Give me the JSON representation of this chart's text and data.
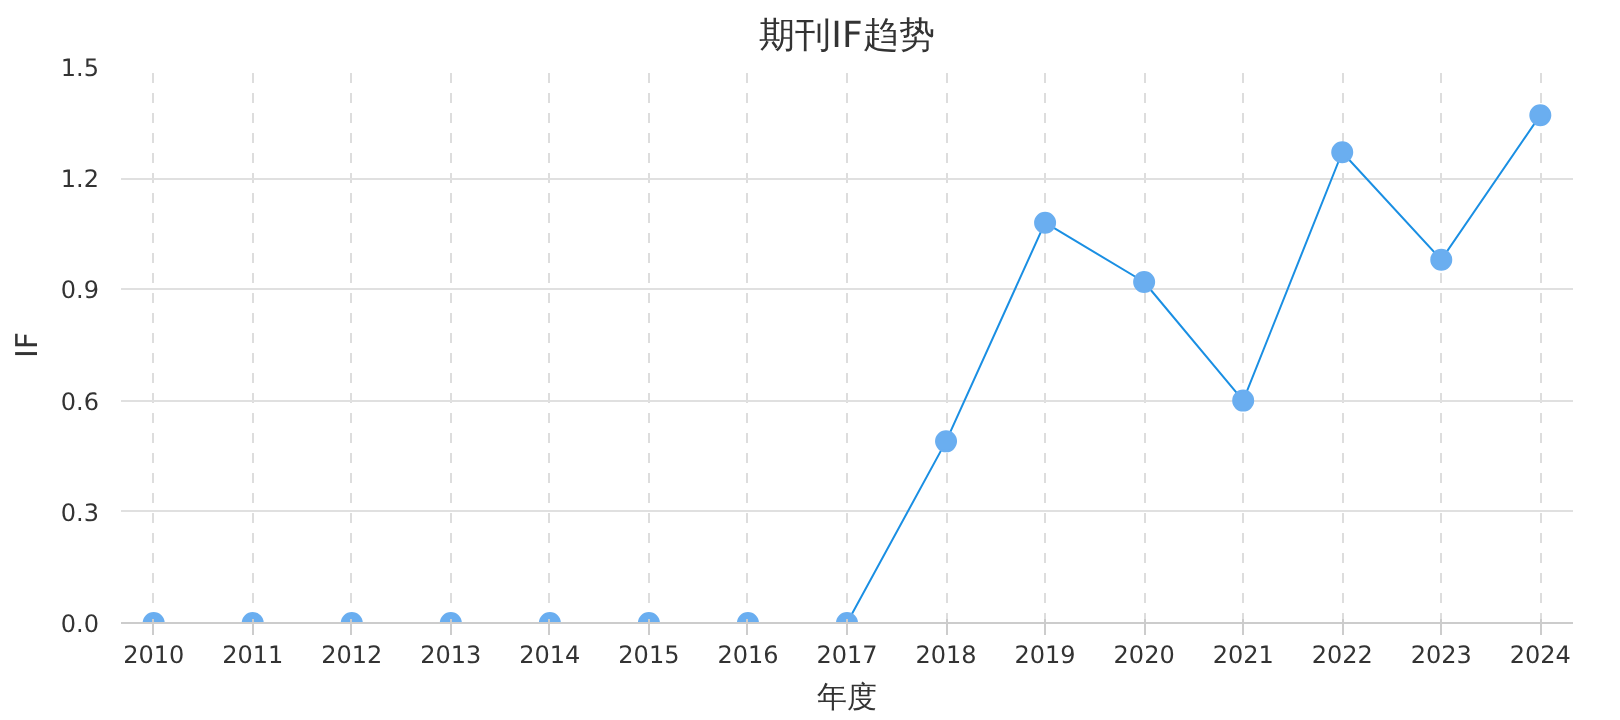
{
  "chart_data": {
    "type": "line",
    "title": "期刊IF趋势",
    "xlabel": "年度",
    "ylabel": "IF",
    "categories": [
      "2010",
      "2011",
      "2012",
      "2013",
      "2014",
      "2015",
      "2016",
      "2017",
      "2018",
      "2019",
      "2020",
      "2021",
      "2022",
      "2023",
      "2024"
    ],
    "series": [
      {
        "color": "#1a8fe3",
        "values": [
          0,
          0,
          0,
          0,
          0,
          0,
          0,
          0,
          0.49,
          1.08,
          0.92,
          0.6,
          1.27,
          0.98,
          1.37
        ]
      }
    ],
    "ylim": [
      0,
      1.5
    ],
    "yticks": [
      {
        "value": 0,
        "label": "0.0"
      },
      {
        "value": 0.3,
        "label": "0.3"
      },
      {
        "value": 0.6,
        "label": "0.6"
      },
      {
        "value": 0.9,
        "label": "0.9"
      },
      {
        "value": 1.2,
        "label": "1.2"
      },
      {
        "value": 1.5,
        "label": "1.5"
      }
    ],
    "grid": true,
    "marker": "circle",
    "line_style": "solid"
  }
}
